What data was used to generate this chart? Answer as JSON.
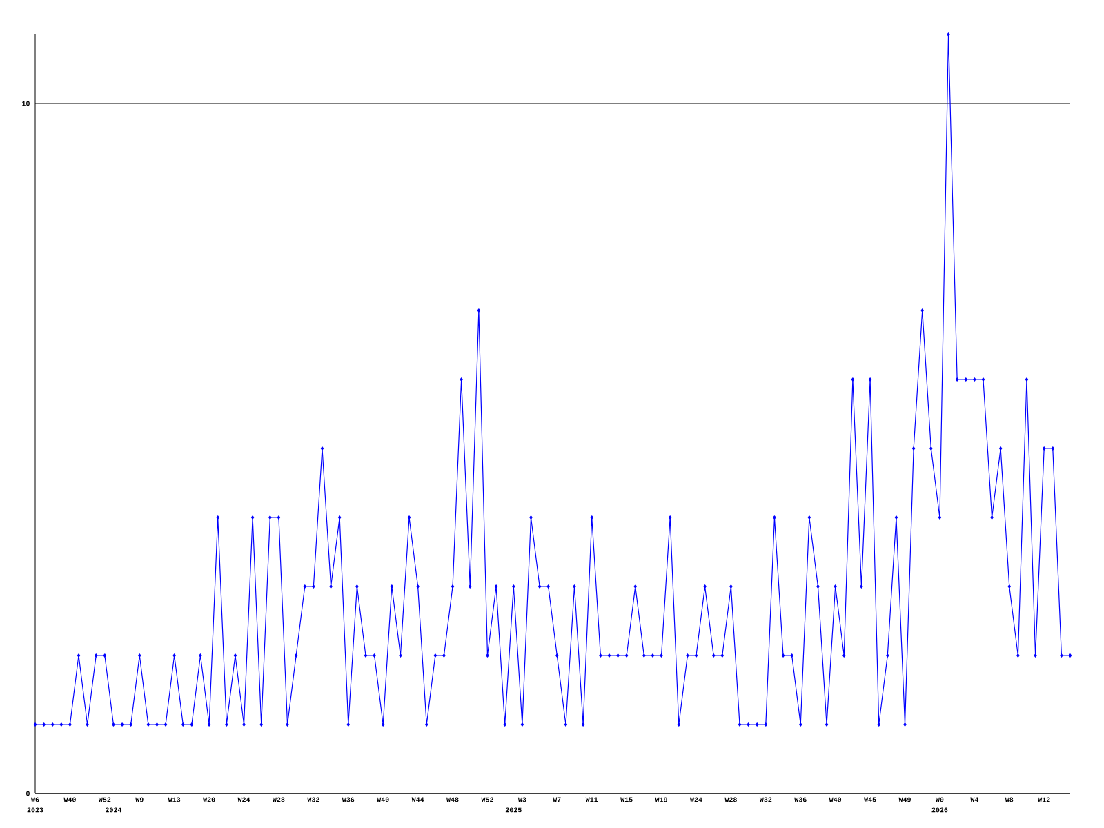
{
  "chart_data": {
    "type": "line",
    "categories": [
      "W6 2023",
      null,
      null,
      null,
      "W40",
      null,
      null,
      null,
      "W52",
      "2024",
      null,
      null,
      "W9",
      null,
      null,
      null,
      "W13",
      null,
      null,
      null,
      "W20",
      null,
      null,
      null,
      "W24",
      null,
      null,
      null,
      "W28",
      null,
      null,
      null,
      "W32",
      null,
      null,
      null,
      "W36",
      null,
      null,
      null,
      "W40",
      null,
      null,
      null,
      "W44",
      null,
      null,
      null,
      "W48",
      null,
      null,
      null,
      "W52",
      null,
      null,
      "2025",
      "W3",
      null,
      null,
      null,
      "W7",
      null,
      null,
      null,
      "W11",
      null,
      null,
      null,
      "W15",
      null,
      null,
      null,
      "W19",
      null,
      null,
      null,
      "W24",
      null,
      null,
      null,
      "W28",
      null,
      null,
      null,
      "W32",
      null,
      null,
      null,
      "W36",
      null,
      null,
      null,
      "W40",
      null,
      null,
      null,
      "W45",
      null,
      null,
      null,
      "W49",
      null,
      null,
      null,
      "W0 2026",
      null,
      null,
      null,
      "W4",
      null,
      null,
      null,
      "W8",
      null,
      null,
      null,
      "W12",
      null,
      null,
      null
    ],
    "values": [
      1,
      1,
      1,
      1,
      1,
      2,
      1,
      2,
      2,
      1,
      1,
      1,
      2,
      1,
      1,
      1,
      2,
      1,
      1,
      2,
      1,
      4,
      1,
      2,
      1,
      4,
      1,
      4,
      4,
      1,
      2,
      3,
      3,
      5,
      3,
      4,
      1,
      3,
      2,
      2,
      1,
      3,
      2,
      4,
      3,
      1,
      2,
      2,
      3,
      6,
      3,
      7,
      2,
      3,
      1,
      3,
      1,
      4,
      3,
      3,
      2,
      1,
      3,
      1,
      4,
      2,
      2,
      2,
      2,
      3,
      2,
      2,
      2,
      4,
      1,
      2,
      2,
      3,
      2,
      2,
      3,
      1,
      1,
      1,
      1,
      4,
      2,
      2,
      1,
      4,
      3,
      1,
      3,
      2,
      6,
      3,
      6,
      1,
      2,
      4,
      1,
      5,
      7,
      5,
      4,
      11,
      6,
      6,
      6,
      6,
      4,
      5,
      3,
      2,
      6,
      2,
      5,
      5,
      2,
      2
    ],
    "color": "#0000ff",
    "marker": "diamond",
    "ylim": [
      0,
      11
    ],
    "yticks": [
      0,
      10
    ],
    "grid": "y"
  }
}
